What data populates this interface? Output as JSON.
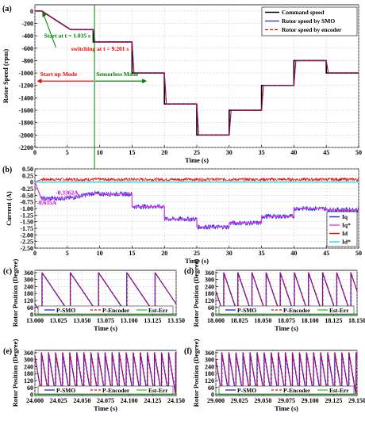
{
  "colors": {
    "command": "#000000",
    "smo": "#2222ee",
    "encoder": "#ff0000",
    "iq": "#2222ee",
    "iq_ref": "#e040e0",
    "id": "#ff0000",
    "id_ref": "#00e5ee",
    "p_smo": "#2222ee",
    "p_enc": "#ff0000",
    "est_err": "#22cc22",
    "start_ann": "#008000",
    "switch_ann": "#ff0000",
    "mode_arrow": "#ff0000",
    "mode_green": "#008000",
    "vline": "#008000",
    "current_note": "#cc00cc"
  },
  "chart_data": [
    {
      "id": "a",
      "type": "line",
      "panel_label": "(a)",
      "xlabel": "Time (s)",
      "ylabel": "Rotor Speed (rpm)",
      "xlim": [
        0,
        50
      ],
      "ylim": [
        -2200,
        100
      ],
      "xticks": [
        "0",
        "5",
        "10",
        "15",
        "20",
        "25",
        "30",
        "35",
        "40",
        "45",
        "50"
      ],
      "yticks": [
        "0",
        "-200",
        "-400",
        "-600",
        "-800",
        "-1000",
        "-1200",
        "-1400",
        "-1600",
        "-1800",
        "-2000",
        "-2200"
      ],
      "legend_position": "top-right",
      "series": [
        {
          "name": "Command speed",
          "style": "solid",
          "x": [
            0,
            1.035,
            5.5,
            9,
            9,
            15,
            15,
            20,
            20,
            25,
            25,
            30,
            30,
            35,
            35,
            40,
            40,
            45,
            45,
            50
          ],
          "y": [
            0,
            0,
            -300,
            -300,
            -500,
            -500,
            -1000,
            -1000,
            -1500,
            -1500,
            -2000,
            -2000,
            -1600,
            -1600,
            -1200,
            -1200,
            -800,
            -800,
            -1000,
            -1000
          ]
        },
        {
          "name": "Rotor speed by SMO",
          "style": "solid",
          "x": [
            0,
            1.035,
            5.5,
            9,
            9.3,
            15,
            15.3,
            20,
            20.3,
            25,
            25.3,
            30,
            30.3,
            35,
            35.3,
            40,
            40.3,
            45,
            45.3,
            50
          ],
          "y": [
            0,
            0,
            -300,
            -300,
            -500,
            -500,
            -1000,
            -1000,
            -1500,
            -1500,
            -2000,
            -2000,
            -1600,
            -1600,
            -1200,
            -1200,
            -800,
            -800,
            -1000,
            -1000
          ]
        },
        {
          "name": "Rotor speed by encoder",
          "style": "dashed",
          "x": [
            0,
            1.035,
            5.5,
            9,
            9.3,
            15,
            15.3,
            20,
            20.3,
            25,
            25.3,
            30,
            30.3,
            35,
            35.3,
            40,
            40.3,
            45,
            45.3,
            50
          ],
          "y": [
            0,
            0,
            -300,
            -300,
            -500,
            -500,
            -1000,
            -1000,
            -1500,
            -1500,
            -2000,
            -2000,
            -1600,
            -1600,
            -1200,
            -1200,
            -800,
            -800,
            -1000,
            -1000
          ]
        }
      ],
      "annotations": {
        "start": "Start at t = 1.035 s",
        "switch": "switching at t = 9.201 s",
        "startup_mode": "Start up Mode",
        "sensorless_mode": "Sensorless Mode",
        "switch_time": 9.201,
        "start_time": 1.035
      }
    },
    {
      "id": "b",
      "type": "line",
      "panel_label": "(b)",
      "xlabel": "Time (s)",
      "ylabel": "Current (A)",
      "xlim": [
        0,
        50
      ],
      "ylim": [
        -2.5,
        0.5
      ],
      "xticks": [
        "0",
        "5",
        "10",
        "15",
        "20",
        "25",
        "30",
        "35",
        "40",
        "45",
        "50"
      ],
      "yticks": [
        "0.50",
        "0.25",
        "0",
        "-0.25",
        "-0.50",
        "-0.75",
        "-1.00",
        "-1.25",
        "-1.50",
        "-1.75",
        "-2.00",
        "-2.25",
        "-2.50"
      ],
      "legend_position": "bottom-right",
      "series": [
        {
          "name": "Iq",
          "noise": 0.09,
          "x": [
            0,
            1,
            5.5,
            9.2,
            10,
            15,
            15,
            20,
            20,
            25,
            25,
            30,
            30,
            35,
            35,
            40,
            40,
            45,
            45,
            50
          ],
          "y": [
            0,
            -0.63,
            -0.6,
            -0.42,
            -0.45,
            -0.45,
            -0.93,
            -0.93,
            -1.4,
            -1.4,
            -1.7,
            -1.7,
            -1.55,
            -1.55,
            -1.3,
            -1.3,
            -1.0,
            -1.0,
            -1.05,
            -1.05
          ]
        },
        {
          "name": "Iq*",
          "noise": 0.0,
          "x": [
            0,
            1,
            5.5,
            9.2,
            10,
            15,
            15,
            20,
            20,
            25,
            25,
            30,
            30,
            35,
            35,
            40,
            40,
            45,
            45,
            50
          ],
          "y": [
            0,
            -0.63,
            -0.6,
            -0.42,
            -0.45,
            -0.45,
            -0.93,
            -0.93,
            -1.4,
            -1.4,
            -1.7,
            -1.7,
            -1.55,
            -1.55,
            -1.3,
            -1.3,
            -1.0,
            -1.0,
            -1.05,
            -1.05
          ]
        },
        {
          "name": "Id",
          "noise": 0.06,
          "x": [
            0,
            1,
            50
          ],
          "y": [
            0,
            0.1,
            0.1
          ]
        },
        {
          "name": "Id*",
          "noise": 0.0,
          "x": [
            0,
            50
          ],
          "y": [
            0,
            0
          ]
        }
      ],
      "annotations": {
        "iq_start": "-0.3362A",
        "iq_end": "-0.635A"
      }
    },
    {
      "id": "c",
      "type": "line",
      "panel_label": "(c)",
      "xlabel": "Time (s)",
      "ylabel": "Rotor Position (Degree)",
      "xlim": [
        13.0,
        13.15
      ],
      "ylim": [
        -10,
        380
      ],
      "xticks": [
        "13.000",
        "13.025",
        "13.050",
        "13.075",
        "13.100",
        "13.125",
        "13.150"
      ],
      "yticks": [
        "0",
        "60",
        "120",
        "180",
        "240",
        "300",
        "360"
      ],
      "sawtooth": {
        "start_phase": 90,
        "period": 0.03,
        "direction": -1
      },
      "series": [
        {
          "name": "P-SMO"
        },
        {
          "name": "P-Encoder"
        },
        {
          "name": "Est-Err"
        }
      ]
    },
    {
      "id": "d",
      "type": "line",
      "panel_label": "(d)",
      "xlabel": "Time (s)",
      "ylabel": "Rotor Position (Degree)",
      "xlim": [
        18.0,
        18.15
      ],
      "ylim": [
        -10,
        380
      ],
      "xticks": [
        "18.000",
        "18.025",
        "18.050",
        "18.075",
        "18.100",
        "18.125",
        "18.150"
      ],
      "yticks": [
        "0",
        "60",
        "120",
        "180",
        "240",
        "300",
        "360"
      ],
      "sawtooth": {
        "start_phase": 200,
        "period": 0.015,
        "direction": -1
      },
      "series": [
        {
          "name": "P-SMO"
        },
        {
          "name": "P-Encoder"
        },
        {
          "name": "Est-Err"
        }
      ]
    },
    {
      "id": "e",
      "type": "line",
      "panel_label": "(e)",
      "xlabel": "Time (s)",
      "ylabel": "Rotor Position (Degree)",
      "xlim": [
        24.0,
        24.15
      ],
      "ylim": [
        -10,
        380
      ],
      "xticks": [
        "24.000",
        "24.025",
        "24.050",
        "24.075",
        "24.100",
        "24.125",
        "24.150"
      ],
      "yticks": [
        "0",
        "60",
        "120",
        "180",
        "240",
        "300",
        "360"
      ],
      "sawtooth": {
        "start_phase": 330,
        "period": 0.0075,
        "direction": -1
      },
      "series": [
        {
          "name": "P-SMO"
        },
        {
          "name": "P-Encoder"
        },
        {
          "name": "Est-Err"
        }
      ]
    },
    {
      "id": "f",
      "type": "line",
      "panel_label": "(f)",
      "xlabel": "Time (s)",
      "ylabel": "Rotor Position (Degree)",
      "xlim": [
        29.0,
        29.15
      ],
      "ylim": [
        -10,
        380
      ],
      "xticks": [
        "29.000",
        "29.025",
        "29.050",
        "29.075",
        "29.100",
        "29.125",
        "29.150"
      ],
      "yticks": [
        "0",
        "60",
        "120",
        "180",
        "240",
        "300",
        "360"
      ],
      "sawtooth": {
        "start_phase": 300,
        "period": 0.0075,
        "direction": -1
      },
      "series": [
        {
          "name": "P-SMO"
        },
        {
          "name": "P-Encoder"
        },
        {
          "name": "Est-Err"
        }
      ]
    }
  ]
}
